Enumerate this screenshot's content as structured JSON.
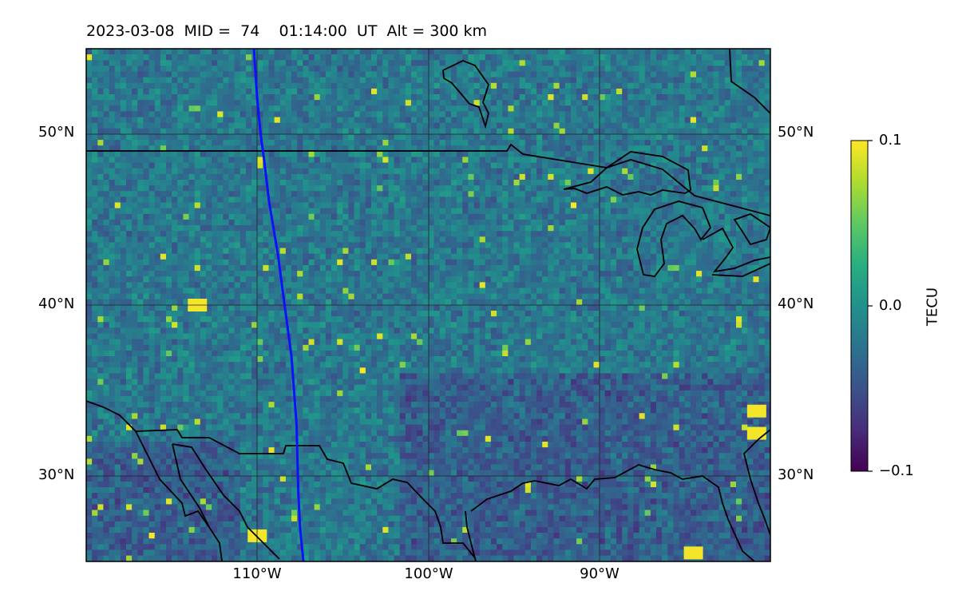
{
  "title": "2023-03-08  MID =  74    01:14:00  UT  Alt = 300 km",
  "map": {
    "lon_range": [
      -120,
      -80
    ],
    "lat_range": [
      25,
      55
    ],
    "gridlines": true,
    "lat_labels_left": [
      "50°N",
      "40°N",
      "30°N"
    ],
    "lat_labels_right": [
      "50°N",
      "40°N",
      "30°N"
    ],
    "lon_labels": [
      "110°W",
      "100°W",
      "90°W"
    ],
    "colormap": "viridis",
    "track_color": "#1010ff"
  },
  "colorbar": {
    "label": "TECU",
    "ticks": [
      "0.1",
      "0.0",
      "−0.1"
    ]
  },
  "chart_data": {
    "type": "heatmap",
    "title": "2023-03-08  MID =  74    01:14:00  UT  Alt = 300 km",
    "xlim": [
      -120,
      -80
    ],
    "ylim": [
      25,
      55
    ],
    "colorbar_range": [
      -0.1,
      0.1
    ],
    "colorbar_label": "TECU",
    "track_lon_lat": [
      [
        -110.2,
        55
      ],
      [
        -110.0,
        52
      ],
      [
        -109.8,
        50
      ],
      [
        -109.6,
        48.5
      ],
      [
        -109.3,
        46
      ],
      [
        -108.8,
        43
      ],
      [
        -108.4,
        40
      ],
      [
        -108.0,
        37
      ],
      [
        -107.7,
        33
      ],
      [
        -107.6,
        29
      ],
      [
        -107.5,
        27
      ],
      [
        -107.3,
        25
      ]
    ]
  }
}
